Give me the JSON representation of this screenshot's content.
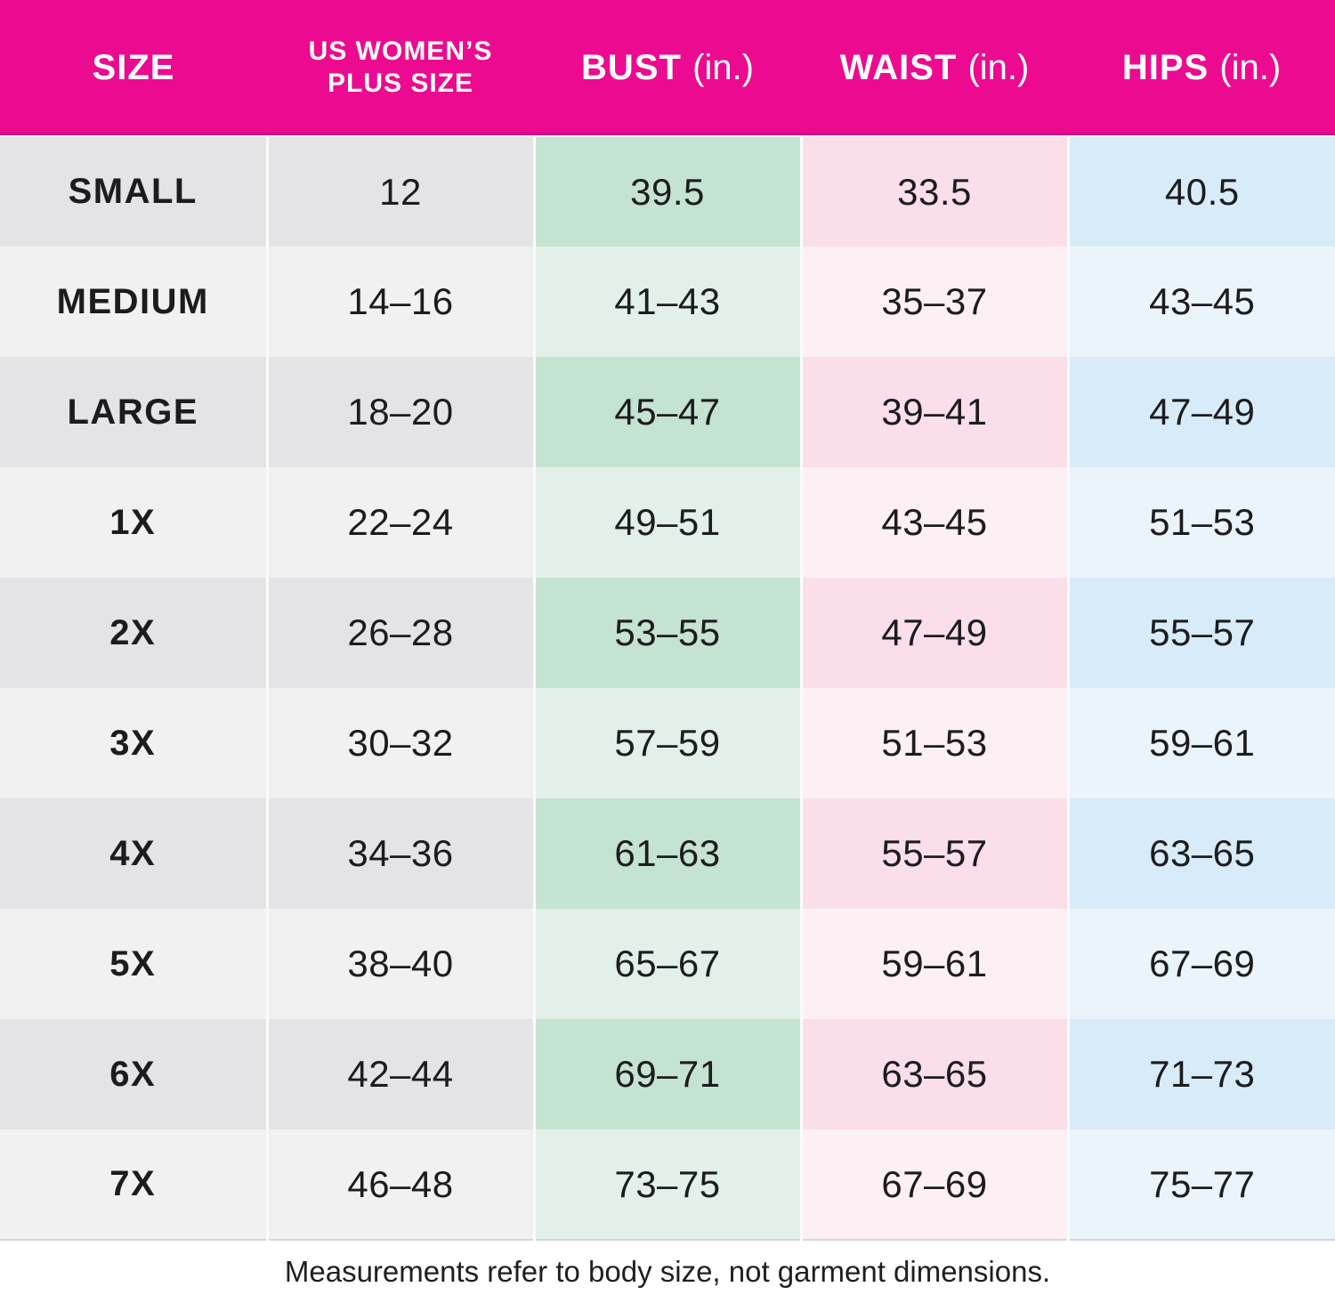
{
  "chart_data": {
    "type": "table",
    "columns": [
      {
        "id": "size",
        "header": "SIZE",
        "unit": ""
      },
      {
        "id": "plus_size",
        "header": "US WOMEN’S PLUS SIZE",
        "unit": ""
      },
      {
        "id": "bust",
        "header": "BUST",
        "unit": "(in.)"
      },
      {
        "id": "waist",
        "header": "WAIST",
        "unit": "(in.)"
      },
      {
        "id": "hips",
        "header": "HIPS",
        "unit": "(in.)"
      }
    ],
    "rows": [
      {
        "size": "SMALL",
        "plus_size": "12",
        "bust": "39.5",
        "waist": "33.5",
        "hips": "40.5"
      },
      {
        "size": "MEDIUM",
        "plus_size": "14–16",
        "bust": "41–43",
        "waist": "35–37",
        "hips": "43–45"
      },
      {
        "size": "LARGE",
        "plus_size": "18–20",
        "bust": "45–47",
        "waist": "39–41",
        "hips": "47–49"
      },
      {
        "size": "1X",
        "plus_size": "22–24",
        "bust": "49–51",
        "waist": "43–45",
        "hips": "51–53"
      },
      {
        "size": "2X",
        "plus_size": "26–28",
        "bust": "53–55",
        "waist": "47–49",
        "hips": "55–57"
      },
      {
        "size": "3X",
        "plus_size": "30–32",
        "bust": "57–59",
        "waist": "51–53",
        "hips": "59–61"
      },
      {
        "size": "4X",
        "plus_size": "34–36",
        "bust": "61–63",
        "waist": "55–57",
        "hips": "63–65"
      },
      {
        "size": "5X",
        "plus_size": "38–40",
        "bust": "65–67",
        "waist": "59–61",
        "hips": "67–69"
      },
      {
        "size": "6X",
        "plus_size": "42–44",
        "bust": "69–71",
        "waist": "63–65",
        "hips": "71–73"
      },
      {
        "size": "7X",
        "plus_size": "46–48",
        "bust": "73–75",
        "waist": "67–69",
        "hips": "75–77"
      }
    ],
    "title": "",
    "layout": {
      "grid": "column-tinted alternating rows",
      "legend": "none"
    }
  },
  "footer_note": "Measurements refer to body size, not garment dimensions.",
  "colors": {
    "header_bg": "#EC0A90",
    "header_text": "#FFFFFF",
    "text": "#1C1C1E",
    "gray_odd": "#E4E4E6",
    "gray_even": "#F1F1F2",
    "green_odd": "#C5E3D1",
    "green_even": "#E2F0E9",
    "pink_odd": "#FADEEA",
    "pink_even": "#FCF0F5",
    "blue_odd": "#D7ECF8",
    "blue_even": "#EAF4FA",
    "grid": "#FBFBFB",
    "table_bottom": "#D6D6D8",
    "header_edge": "#D60B85"
  }
}
